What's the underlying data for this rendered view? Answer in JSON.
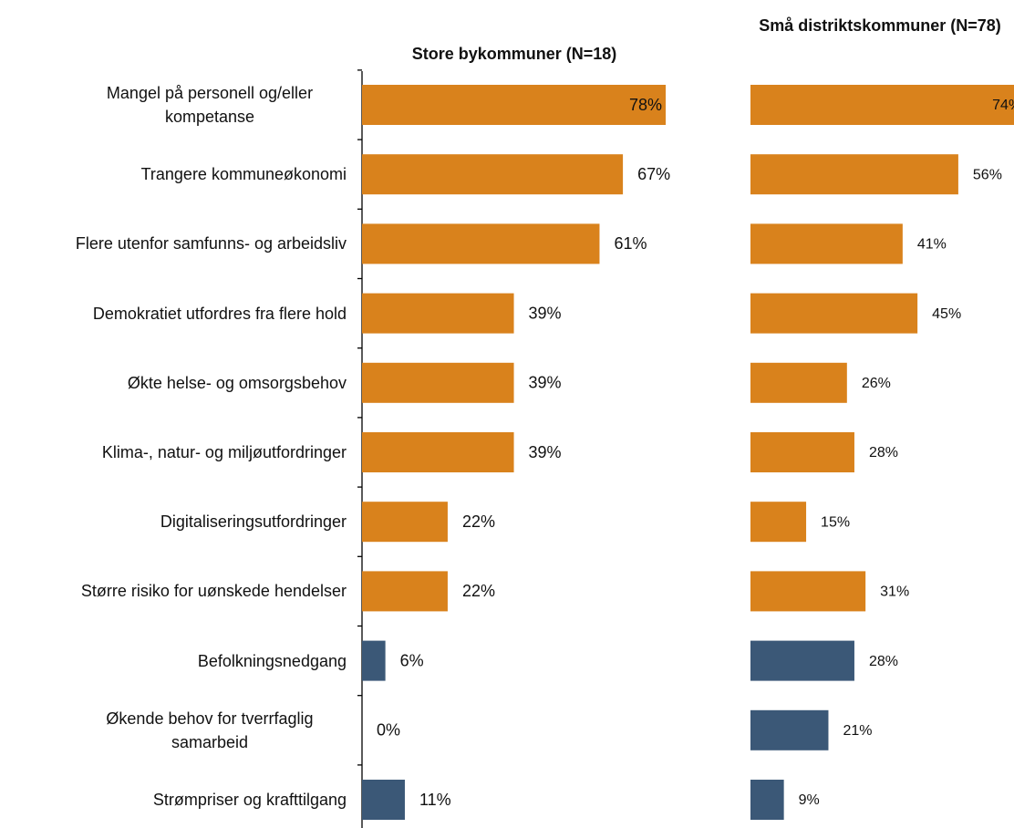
{
  "chart_data": [
    {
      "type": "bar",
      "orientation": "horizontal",
      "title": "Store bykommuner (N=18)",
      "categories": [
        "Mangel på personell og/eller kompetanse",
        "Trangere kommuneøkonomi",
        "Flere utenfor samfunns- og arbeidsliv",
        "Demokratiet utfordres fra flere hold",
        "Økte helse- og omsorgsbehov",
        "Klima-, natur- og miljøutfordringer",
        "Digitaliseringsutfordringer",
        "Større risiko for uønskede hendelser",
        "Befolkningsnedgang",
        "Økende behov for tverrfaglig samarbeid",
        "Strømpriser og krafttilgang"
      ],
      "values": [
        78,
        67,
        61,
        39,
        39,
        39,
        22,
        22,
        6,
        0,
        11
      ],
      "value_labels": [
        "78%",
        "67%",
        "61%",
        "39%",
        "39%",
        "39%",
        "22%",
        "22%",
        "6%",
        "0%",
        "11%"
      ],
      "colors": [
        "#d9821c",
        "#d9821c",
        "#d9821c",
        "#d9821c",
        "#d9821c",
        "#d9821c",
        "#d9821c",
        "#d9821c",
        "#3b5877",
        "#3b5877",
        "#3b5877"
      ]
    },
    {
      "type": "bar",
      "orientation": "horizontal",
      "title": "Små distriktskommuner (N=78)",
      "values": [
        74,
        56,
        41,
        45,
        26,
        28,
        15,
        31,
        28,
        21,
        9
      ],
      "value_labels": [
        "74%",
        "56%",
        "41%",
        "45%",
        "26%",
        "28%",
        "15%",
        "31%",
        "28%",
        "21%",
        "9%"
      ],
      "colors": [
        "#d9821c",
        "#d9821c",
        "#d9821c",
        "#d9821c",
        "#d9821c",
        "#d9821c",
        "#d9821c",
        "#d9821c",
        "#3b5877",
        "#3b5877",
        "#3b5877"
      ]
    }
  ]
}
